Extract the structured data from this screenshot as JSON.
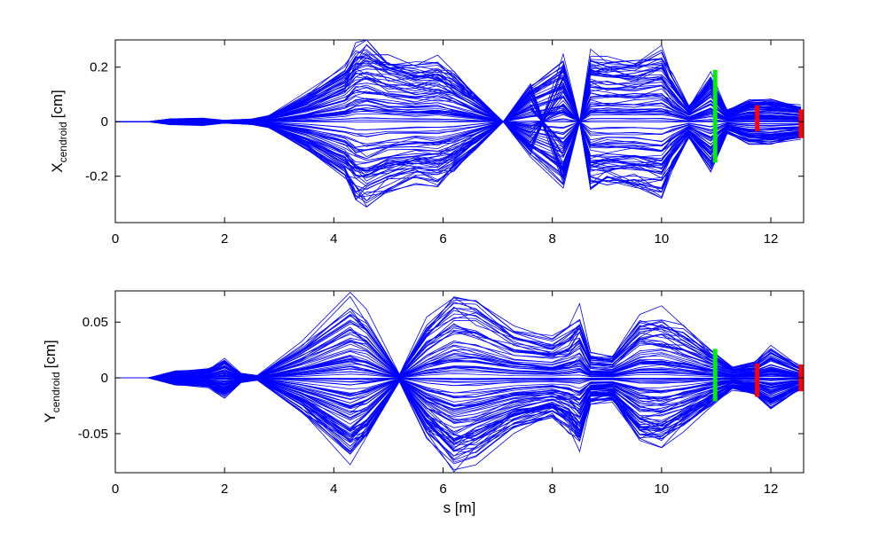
{
  "chart_data": [
    {
      "type": "line",
      "ylabel_main": "X",
      "ylabel_sub": "cendroid",
      "ylabel_unit": "[cm]",
      "xlabel": "",
      "xlim": [
        0,
        12.6
      ],
      "ylim": [
        -0.37,
        0.3
      ],
      "xticks": [
        0,
        2,
        4,
        6,
        8,
        10,
        12
      ],
      "xtick_labels": [
        "0",
        "2",
        "4",
        "6",
        "8",
        "10",
        "12"
      ],
      "yticks": [
        -0.2,
        0,
        0.2
      ],
      "ytick_labels": [
        "-0.2",
        "0",
        "0.2"
      ],
      "grid": false,
      "envelope_s": [
        0,
        0.6,
        1.0,
        1.6,
        2.0,
        2.5,
        2.8,
        3.5,
        4.2,
        4.4,
        4.6,
        5.0,
        5.5,
        5.9,
        6.2,
        6.6,
        7.1,
        7.6,
        8.2,
        8.5,
        8.7,
        9.0,
        9.5,
        10.0,
        10.2,
        10.5,
        10.9,
        11.2,
        11.6,
        12.0,
        12.55
      ],
      "envelope_max": [
        0,
        0,
        0.01,
        0.013,
        0.005,
        0.01,
        0.02,
        0.1,
        0.2,
        0.27,
        0.29,
        0.24,
        0.21,
        0.22,
        0.18,
        0.1,
        0.0,
        0.13,
        0.23,
        0.0,
        0.24,
        0.23,
        0.23,
        0.26,
        0.17,
        0.06,
        0.17,
        0.04,
        0.08,
        0.08,
        0.06
      ],
      "color": "#0000ff",
      "markers": [
        {
          "s": 10.98,
          "y_min": -0.15,
          "y_max": 0.19,
          "color": "#00ee00"
        },
        {
          "s": 11.75,
          "y_min": -0.035,
          "y_max": 0.06,
          "color": "#ff0000"
        },
        {
          "s": 12.55,
          "y_min": -0.06,
          "y_max": 0.045,
          "color": "#ff0000"
        }
      ]
    },
    {
      "type": "line",
      "ylabel_main": "Y",
      "ylabel_sub": "cendroid",
      "ylabel_unit": "[cm]",
      "xlabel": "s [m]",
      "xlim": [
        0,
        12.6
      ],
      "ylim": [
        -0.085,
        0.078
      ],
      "xticks": [
        0,
        2,
        4,
        6,
        8,
        10,
        12
      ],
      "xtick_labels": [
        "0",
        "2",
        "4",
        "6",
        "8",
        "10",
        "12"
      ],
      "yticks": [
        -0.05,
        0,
        0.05
      ],
      "ytick_labels": [
        "-0.05",
        "0",
        "0.05"
      ],
      "grid": false,
      "envelope_s": [
        0,
        0.6,
        1.1,
        1.7,
        2.0,
        2.3,
        2.6,
        3.4,
        4.3,
        4.6,
        5.2,
        5.7,
        6.2,
        6.6,
        7.3,
        8.0,
        8.3,
        8.5,
        8.7,
        9.1,
        9.6,
        10.0,
        10.4,
        10.9,
        11.3,
        11.7,
        12.0,
        12.55
      ],
      "envelope_max": [
        0,
        0,
        0.006,
        0.008,
        0.017,
        0.004,
        0.002,
        0.03,
        0.07,
        0.055,
        0.003,
        0.05,
        0.077,
        0.07,
        0.045,
        0.035,
        0.045,
        0.06,
        0.022,
        0.02,
        0.055,
        0.058,
        0.045,
        0.025,
        0.01,
        0.015,
        0.028,
        0.01
      ],
      "color": "#0000ff",
      "markers": [
        {
          "s": 10.98,
          "y_min": -0.021,
          "y_max": 0.026,
          "color": "#00ee00"
        },
        {
          "s": 11.75,
          "y_min": -0.017,
          "y_max": 0.013,
          "color": "#ff0000"
        },
        {
          "s": 12.55,
          "y_min": -0.012,
          "y_max": 0.012,
          "color": "#ff0000"
        }
      ]
    }
  ]
}
